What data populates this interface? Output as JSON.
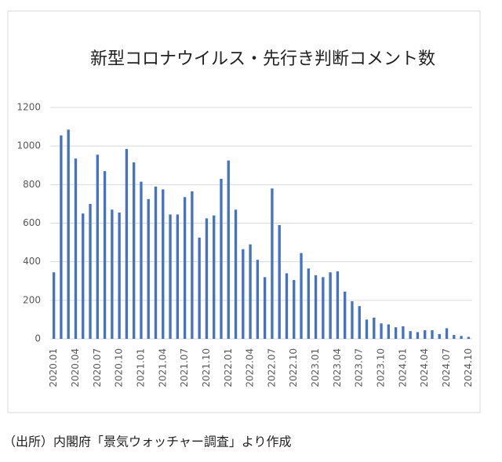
{
  "chart_data": {
    "type": "bar",
    "title": "新型コロナウイルス・先行き判断コメント数",
    "categories": [
      "2020.01",
      null,
      null,
      "2020.04",
      null,
      null,
      "2020.07",
      null,
      null,
      "2020.10",
      null,
      null,
      "2021.01",
      null,
      null,
      "2021.04",
      null,
      null,
      "2021.07",
      null,
      null,
      "2021.10",
      null,
      null,
      "2022.01",
      null,
      null,
      "2022.04",
      null,
      null,
      "2022.07",
      null,
      null,
      "2022.10",
      null,
      null,
      "2023.01",
      null,
      null,
      "2023.04",
      null,
      null,
      "2023.07",
      null,
      null,
      "2023.10",
      null,
      null,
      "2024.01",
      null,
      null,
      "2024.04",
      null,
      null,
      "2024.07",
      null,
      null,
      "2024.10"
    ],
    "values": [
      345,
      1055,
      1085,
      935,
      650,
      700,
      955,
      870,
      670,
      655,
      985,
      915,
      815,
      725,
      790,
      775,
      645,
      645,
      735,
      765,
      525,
      625,
      640,
      830,
      925,
      670,
      465,
      490,
      410,
      320,
      780,
      590,
      340,
      305,
      445,
      365,
      330,
      320,
      345,
      350,
      245,
      195,
      170,
      100,
      110,
      80,
      75,
      60,
      65,
      40,
      35,
      45,
      45,
      25,
      55,
      20,
      15,
      10
    ],
    "color": "#4472c4",
    "ylim": [
      0,
      1200
    ],
    "yticks": [
      0,
      200,
      400,
      600,
      800,
      1000,
      1200
    ],
    "grid": true,
    "source": "（出所）内閣府「景気ウォッチャー調査」より作成"
  }
}
